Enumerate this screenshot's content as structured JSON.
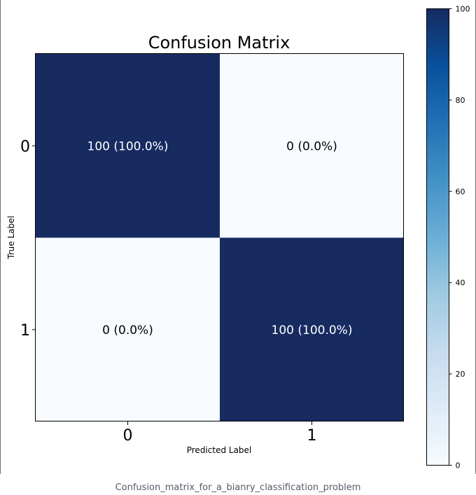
{
  "caption": "Confusion_matrix_for_a_bianry_classification_problem",
  "chart_data": {
    "type": "heatmap",
    "title": "Confusion Matrix",
    "xlabel": "Predicted Label",
    "ylabel": "True Label",
    "x_categories": [
      "0",
      "1"
    ],
    "y_categories": [
      "0",
      "1"
    ],
    "values": [
      [
        100,
        0
      ],
      [
        0,
        100
      ]
    ],
    "cell_labels": [
      [
        "100 (100.0%)",
        "0 (0.0%)"
      ],
      [
        "0 (0.0%)",
        "100 (100.0%)"
      ]
    ],
    "colormap": "Blues",
    "colors": {
      "high": "#08306b",
      "high_display": "#172b61",
      "low": "#f7fbff",
      "text_on_dark": "#ffffff",
      "text_on_light": "#000000"
    },
    "colorbar": {
      "range": [
        0,
        100
      ],
      "ticks": [
        0,
        20,
        40,
        60,
        80,
        100
      ]
    },
    "grid": false,
    "legend": "colorbar-right"
  }
}
